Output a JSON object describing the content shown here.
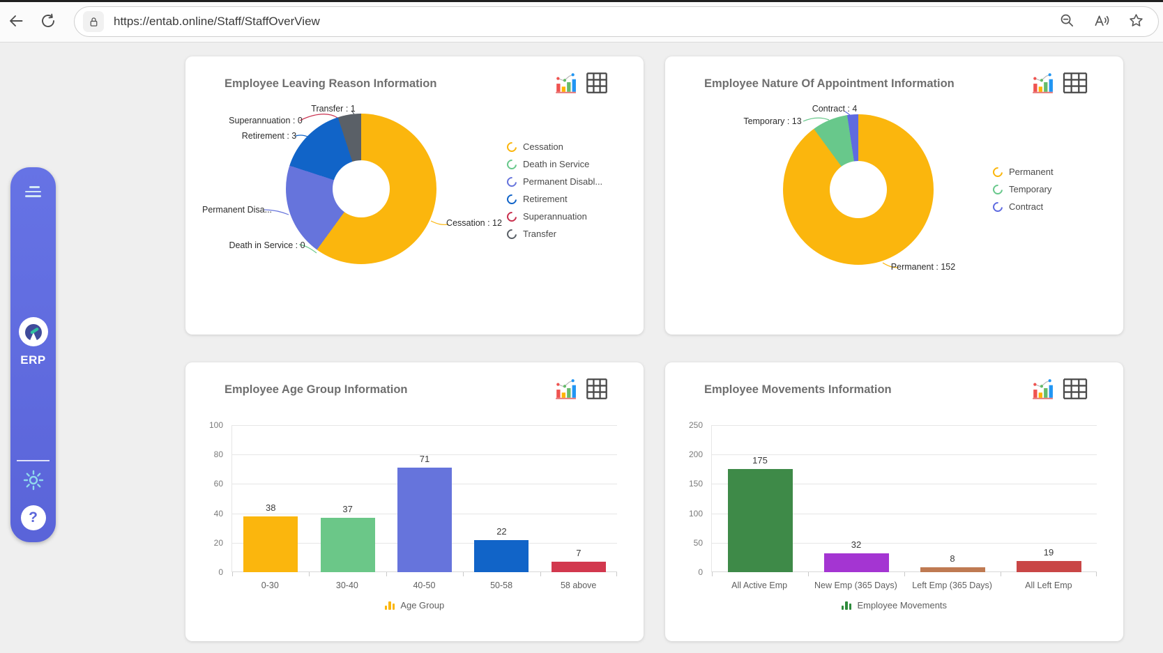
{
  "browser": {
    "url": "https://entab.online/Staff/StaffOverView"
  },
  "sidebar": {
    "logo_text": "ERP",
    "help_glyph": "?"
  },
  "chart_data": [
    {
      "type": "pie",
      "variant": "donut",
      "title": "Employee Leaving Reason Information",
      "labels": [
        "Cessation",
        "Death in Service",
        "Permanent Disabl...",
        "Retirement",
        "Superannuation",
        "Transfer"
      ],
      "values": [
        12,
        0,
        4,
        3,
        0,
        1
      ],
      "colors": [
        "#FBB60D",
        "#68C88B",
        "#6674DC",
        "#1164C8",
        "#C9304E",
        "#5A6067"
      ],
      "callouts": [
        "Cessation : 12",
        "Death in Service : 0",
        "Permanent Disa...",
        "Retirement : 3",
        "Superannuation : 0",
        "Transfer : 1"
      ],
      "legend": [
        "Cessation",
        "Death in Service",
        "Permanent Disabl...",
        "Retirement",
        "Superannuation",
        "Transfer"
      ],
      "legend_position": "right"
    },
    {
      "type": "pie",
      "variant": "donut",
      "title": "Employee Nature Of Appointment Information",
      "labels": [
        "Permanent",
        "Temporary",
        "Contract"
      ],
      "values": [
        152,
        13,
        4
      ],
      "colors": [
        "#FBB60D",
        "#68C88B",
        "#5F6BE0"
      ],
      "callouts": [
        "Permanent : 152",
        "Temporary : 13",
        "Contract : 4"
      ],
      "legend": [
        "Permanent",
        "Temporary",
        "Contract"
      ],
      "legend_position": "right"
    },
    {
      "type": "bar",
      "title": "Employee Age Group Information",
      "categories": [
        "0-30",
        "30-40",
        "40-50",
        "50-58",
        "58 above"
      ],
      "values": [
        38,
        37,
        71,
        22,
        7
      ],
      "colors": [
        "#FBB60D",
        "#6BC788",
        "#6674DC",
        "#1164C8",
        "#D2384E"
      ],
      "ylim": [
        0,
        100
      ],
      "yticks": [
        0,
        20,
        40,
        60,
        80,
        100
      ],
      "grid": true,
      "series_legend": "Age Group",
      "series_legend_color": "#FBB60D",
      "legend_position": "bottom"
    },
    {
      "type": "bar",
      "title": "Employee Movements Information",
      "categories": [
        "All Active Emp",
        "New Emp (365 Days)",
        "Left Emp (365 Days)",
        "All Left Emp"
      ],
      "values": [
        175,
        32,
        8,
        19
      ],
      "colors": [
        "#3E8A48",
        "#A435D2",
        "#BF7A52",
        "#C94646"
      ],
      "ylim": [
        0,
        250
      ],
      "yticks": [
        0,
        50,
        100,
        150,
        200,
        250
      ],
      "grid": true,
      "series_legend": "Employee Movements",
      "series_legend_color": "#2E8B3C",
      "legend_position": "bottom"
    }
  ]
}
